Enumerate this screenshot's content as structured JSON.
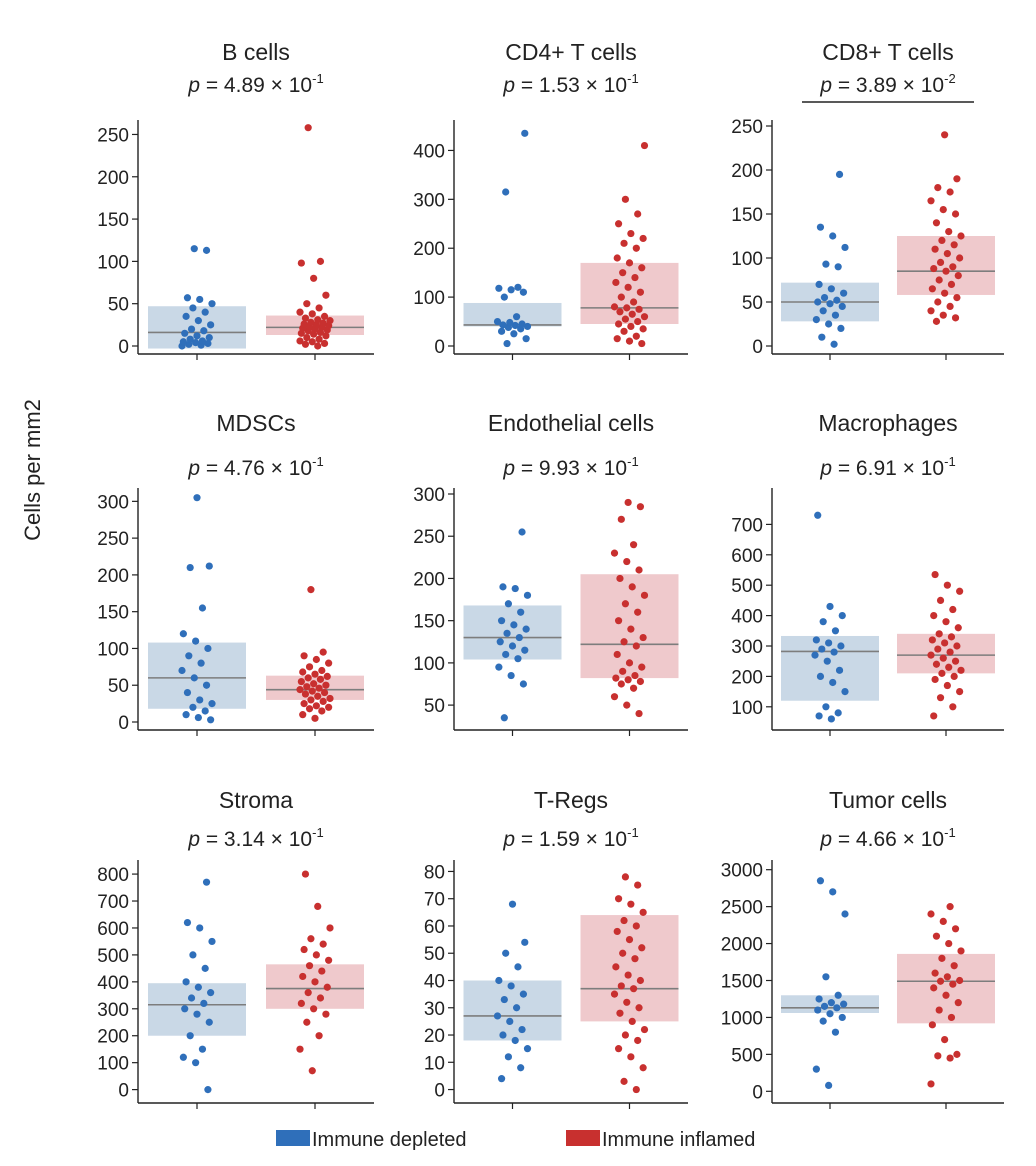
{
  "figure": {
    "ylabel": "Cells per mm2",
    "legend": {
      "placement": "bottom-center",
      "items": [
        {
          "label": "Immune depleted",
          "color": "#2f6fba"
        },
        {
          "label": "Immune inflamed",
          "color": "#c8302f"
        }
      ]
    },
    "colors": {
      "depleted_box": "#c9d8e6",
      "inflamed_box": "#efc9cc",
      "median_line": "#7d7d7d"
    }
  },
  "chart_data": [
    {
      "type": "box-strip",
      "title": "B cells",
      "p_value": "p = 4.89 × 10-1",
      "p_mantissa": "4.89",
      "p_exponent": "-1",
      "significant": false,
      "ylim": [
        0,
        260
      ],
      "yticks": [
        0,
        50,
        100,
        150,
        200,
        250
      ],
      "categories": [
        "Immune depleted",
        "Immune inflamed"
      ],
      "series": [
        {
          "box": {
            "q1": -3,
            "median": 16,
            "q3": 47
          },
          "points": [
            0,
            1,
            2,
            3,
            4,
            5,
            6,
            8,
            10,
            12,
            15,
            18,
            20,
            25,
            30,
            35,
            40,
            45,
            50,
            55,
            57,
            113,
            115
          ]
        },
        {
          "box": {
            "q1": 13,
            "median": 22,
            "q3": 36
          },
          "points": [
            0,
            2,
            3,
            5,
            6,
            8,
            10,
            12,
            14,
            15,
            16,
            18,
            19,
            20,
            21,
            22,
            23,
            24,
            25,
            26,
            27,
            28,
            30,
            31,
            33,
            35,
            38,
            40,
            45,
            50,
            60,
            80,
            98,
            100,
            258
          ]
        }
      ]
    },
    {
      "type": "box-strip",
      "title": "CD4+ T cells",
      "p_value": "p = 1.53 × 10-1",
      "p_mantissa": "1.53",
      "p_exponent": "-1",
      "significant": false,
      "ylim": [
        0,
        450
      ],
      "yticks": [
        0,
        100,
        200,
        300,
        400
      ],
      "categories": [
        "Immune depleted",
        "Immune inflamed"
      ],
      "series": [
        {
          "box": {
            "q1": 40,
            "median": 43,
            "q3": 88
          },
          "points": [
            5,
            15,
            25,
            30,
            35,
            38,
            40,
            42,
            43,
            45,
            48,
            50,
            60,
            100,
            110,
            115,
            118,
            120,
            315,
            435
          ]
        },
        {
          "box": {
            "q1": 45,
            "median": 78,
            "q3": 170
          },
          "points": [
            5,
            10,
            15,
            20,
            30,
            35,
            40,
            45,
            50,
            55,
            60,
            65,
            70,
            75,
            78,
            80,
            90,
            100,
            110,
            120,
            130,
            140,
            150,
            160,
            170,
            180,
            200,
            210,
            220,
            230,
            250,
            270,
            300,
            410
          ]
        }
      ]
    },
    {
      "type": "box-strip",
      "title": "CD8+ T cells",
      "p_value": "p = 3.89 × 10-2",
      "p_mantissa": "3.89",
      "p_exponent": "-2",
      "significant": true,
      "ylim": [
        0,
        250
      ],
      "yticks": [
        0,
        50,
        100,
        150,
        200,
        250
      ],
      "categories": [
        "Immune depleted",
        "Immune inflamed"
      ],
      "series": [
        {
          "box": {
            "q1": 28,
            "median": 50,
            "q3": 72
          },
          "points": [
            2,
            10,
            20,
            25,
            30,
            35,
            40,
            45,
            48,
            50,
            52,
            55,
            60,
            65,
            70,
            90,
            93,
            112,
            125,
            135,
            195
          ]
        },
        {
          "box": {
            "q1": 58,
            "median": 85,
            "q3": 125
          },
          "points": [
            28,
            32,
            35,
            40,
            45,
            50,
            55,
            60,
            65,
            70,
            75,
            80,
            85,
            88,
            90,
            95,
            100,
            105,
            110,
            115,
            120,
            125,
            130,
            140,
            150,
            155,
            165,
            175,
            180,
            190,
            240
          ]
        }
      ]
    },
    {
      "type": "box-strip",
      "title": "MDSCs",
      "p_value": "p = 4.76 × 10-1",
      "p_mantissa": "4.76",
      "p_exponent": "-1",
      "significant": false,
      "ylim": [
        0,
        310
      ],
      "yticks": [
        0,
        50,
        100,
        150,
        200,
        250,
        300
      ],
      "categories": [
        "Immune depleted",
        "Immune inflamed"
      ],
      "series": [
        {
          "box": {
            "q1": 18,
            "median": 60,
            "q3": 108
          },
          "points": [
            3,
            6,
            10,
            15,
            20,
            25,
            30,
            40,
            50,
            60,
            70,
            80,
            90,
            100,
            110,
            120,
            155,
            210,
            212,
            305
          ]
        },
        {
          "box": {
            "q1": 30,
            "median": 44,
            "q3": 63
          },
          "points": [
            5,
            10,
            15,
            18,
            20,
            22,
            25,
            28,
            30,
            32,
            35,
            38,
            40,
            42,
            44,
            46,
            48,
            50,
            52,
            55,
            58,
            60,
            62,
            65,
            68,
            70,
            75,
            80,
            85,
            90,
            95,
            180
          ]
        }
      ]
    },
    {
      "type": "box-strip",
      "title": "Endothelial cells",
      "p_value": "p = 9.93 × 10-1",
      "p_mantissa": "9.93",
      "p_exponent": "-1",
      "significant": false,
      "ylim": [
        30,
        300
      ],
      "yticks": [
        50,
        100,
        150,
        200,
        250,
        300
      ],
      "categories": [
        "Immune depleted",
        "Immune inflamed"
      ],
      "series": [
        {
          "box": {
            "q1": 104,
            "median": 130,
            "q3": 168
          },
          "points": [
            35,
            75,
            85,
            95,
            105,
            110,
            115,
            120,
            125,
            130,
            135,
            140,
            145,
            150,
            160,
            170,
            180,
            188,
            190,
            255
          ]
        },
        {
          "box": {
            "q1": 82,
            "median": 122,
            "q3": 205
          },
          "points": [
            40,
            50,
            60,
            70,
            75,
            78,
            80,
            82,
            85,
            90,
            95,
            100,
            110,
            120,
            125,
            130,
            140,
            150,
            160,
            170,
            180,
            190,
            200,
            210,
            220,
            230,
            240,
            270,
            285,
            290
          ]
        }
      ]
    },
    {
      "type": "box-strip",
      "title": "Macrophages",
      "p_value": "p = 6.91 × 10-1",
      "p_mantissa": "6.91",
      "p_exponent": "-1",
      "significant": false,
      "ylim": [
        50,
        800
      ],
      "yticks": [
        100,
        200,
        300,
        400,
        500,
        600,
        700
      ],
      "categories": [
        "Immune depleted",
        "Immune inflamed"
      ],
      "series": [
        {
          "box": {
            "q1": 120,
            "median": 282,
            "q3": 333
          },
          "points": [
            60,
            70,
            80,
            100,
            150,
            180,
            200,
            220,
            250,
            270,
            280,
            290,
            300,
            310,
            320,
            350,
            380,
            400,
            430,
            730
          ]
        },
        {
          "box": {
            "q1": 210,
            "median": 270,
            "q3": 340
          },
          "points": [
            70,
            100,
            130,
            150,
            170,
            190,
            200,
            210,
            220,
            230,
            240,
            250,
            260,
            270,
            280,
            290,
            300,
            310,
            320,
            330,
            340,
            360,
            380,
            400,
            420,
            450,
            480,
            500,
            535
          ]
        }
      ]
    },
    {
      "type": "box-strip",
      "title": "Stroma",
      "p_value": "p = 3.14 × 10-1",
      "p_mantissa": "3.14",
      "p_exponent": "-1",
      "significant": false,
      "ylim": [
        -20,
        830
      ],
      "yticks": [
        0,
        100,
        200,
        300,
        400,
        500,
        600,
        700,
        800
      ],
      "categories": [
        "Immune depleted",
        "Immune inflamed"
      ],
      "series": [
        {
          "box": {
            "q1": 200,
            "median": 315,
            "q3": 395
          },
          "points": [
            0,
            100,
            120,
            150,
            200,
            250,
            280,
            300,
            320,
            340,
            360,
            380,
            400,
            450,
            500,
            550,
            600,
            620,
            770
          ]
        },
        {
          "box": {
            "q1": 300,
            "median": 375,
            "q3": 465
          },
          "points": [
            70,
            150,
            200,
            250,
            280,
            300,
            320,
            340,
            360,
            380,
            400,
            420,
            440,
            460,
            480,
            500,
            520,
            540,
            560,
            600,
            680,
            800
          ]
        }
      ]
    },
    {
      "type": "box-strip",
      "title": "T-Regs",
      "p_value": "p = 1.59 × 10-1",
      "p_mantissa": "1.59",
      "p_exponent": "-1",
      "significant": false,
      "ylim": [
        -2,
        82
      ],
      "yticks": [
        0,
        10,
        20,
        30,
        40,
        50,
        60,
        70,
        80
      ],
      "categories": [
        "Immune depleted",
        "Immune inflamed"
      ],
      "series": [
        {
          "box": {
            "q1": 18,
            "median": 27,
            "q3": 40
          },
          "points": [
            4,
            8,
            12,
            15,
            18,
            20,
            22,
            25,
            27,
            30,
            33,
            35,
            38,
            40,
            45,
            50,
            54,
            68
          ]
        },
        {
          "box": {
            "q1": 25,
            "median": 37,
            "q3": 64
          },
          "points": [
            0,
            3,
            8,
            12,
            15,
            18,
            20,
            22,
            25,
            28,
            30,
            32,
            35,
            37,
            38,
            40,
            42,
            45,
            48,
            50,
            52,
            55,
            58,
            60,
            62,
            65,
            68,
            70,
            75,
            78
          ]
        }
      ]
    },
    {
      "type": "box-strip",
      "title": "Tumor cells",
      "p_value": "p = 4.66 × 10-1",
      "p_mantissa": "4.66",
      "p_exponent": "-1",
      "significant": false,
      "ylim": [
        -50,
        3050
      ],
      "yticks": [
        0,
        500,
        1000,
        1500,
        2000,
        2500,
        3000
      ],
      "categories": [
        "Immune depleted",
        "Immune inflamed"
      ],
      "series": [
        {
          "box": {
            "q1": 1060,
            "median": 1130,
            "q3": 1300
          },
          "points": [
            80,
            300,
            800,
            950,
            1000,
            1050,
            1100,
            1130,
            1150,
            1180,
            1200,
            1250,
            1300,
            1550,
            2400,
            2700,
            2850
          ]
        },
        {
          "box": {
            "q1": 920,
            "median": 1490,
            "q3": 1860
          },
          "points": [
            100,
            450,
            480,
            500,
            700,
            900,
            1000,
            1100,
            1200,
            1300,
            1400,
            1450,
            1490,
            1500,
            1550,
            1600,
            1700,
            1800,
            1900,
            2000,
            2100,
            2200,
            2300,
            2400,
            2500
          ]
        }
      ]
    }
  ]
}
